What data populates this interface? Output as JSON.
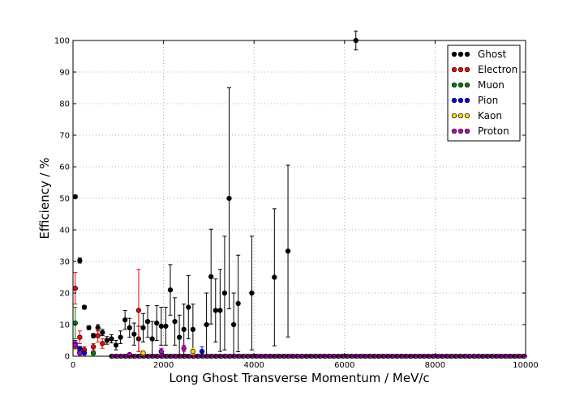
{
  "chart_data": {
    "type": "scatter",
    "xlabel": "Long Ghost Transverse Momentum / MeV/c",
    "ylabel": "Efficiency / %",
    "xlim": [
      0,
      10000
    ],
    "ylim": [
      0,
      100
    ],
    "xticks": [
      "0",
      "2000",
      "4000",
      "6000",
      "8000",
      "10000"
    ],
    "yticks": [
      "0",
      "10",
      "20",
      "30",
      "40",
      "50",
      "60",
      "70",
      "80",
      "90",
      "100"
    ],
    "grid": true,
    "legend_position": "top-right",
    "series": [
      {
        "name": "Ghost",
        "color": "#000000",
        "points": [
          {
            "x": 50,
            "y": 50.5,
            "err": 0.5
          },
          {
            "x": 150,
            "y": 30.3,
            "err": 0.8
          },
          {
            "x": 250,
            "y": 15.5,
            "err": 0.6
          },
          {
            "x": 350,
            "y": 9.0,
            "err": 0.6
          },
          {
            "x": 450,
            "y": 6.5,
            "err": 0.7
          },
          {
            "x": 550,
            "y": 9.0,
            "err": 1.0
          },
          {
            "x": 650,
            "y": 7.5,
            "err": 1.0
          },
          {
            "x": 750,
            "y": 5.0,
            "err": 1.2
          },
          {
            "x": 850,
            "y": 5.5,
            "err": 1.3
          },
          {
            "x": 950,
            "y": 3.5,
            "err": 1.5
          },
          {
            "x": 1050,
            "y": 6.0,
            "err": 2.0
          },
          {
            "x": 1150,
            "y": 11.5,
            "err": 3.0
          },
          {
            "x": 1250,
            "y": 9.0,
            "err": 3.0
          },
          {
            "x": 1350,
            "y": 7.0,
            "err": 3.5
          },
          {
            "x": 1450,
            "y": 5.5,
            "err": 4.0
          },
          {
            "x": 1550,
            "y": 9.0,
            "err": 4.5
          },
          {
            "x": 1650,
            "y": 11.0,
            "err": 5.0
          },
          {
            "x": 1750,
            "y": 5.5,
            "err": 5.5
          },
          {
            "x": 1850,
            "y": 10.5,
            "err": 5.5
          },
          {
            "x": 1950,
            "y": 9.5,
            "err": 6.0
          },
          {
            "x": 2050,
            "y": 9.5,
            "err": 6.0
          },
          {
            "x": 2150,
            "y": 21.0,
            "err": 8.0
          },
          {
            "x": 2250,
            "y": 11.0,
            "err": 7.5
          },
          {
            "x": 2350,
            "y": 6.0,
            "err": 7.0
          },
          {
            "x": 2450,
            "y": 8.5,
            "err": 8.0
          },
          {
            "x": 2550,
            "y": 15.5,
            "err": 10.0
          },
          {
            "x": 2650,
            "y": 8.5,
            "err": 8.0
          },
          {
            "x": 2950,
            "y": 10.0,
            "err": 10.0
          },
          {
            "x": 3050,
            "y": 25.2,
            "err": 15.0
          },
          {
            "x": 3150,
            "y": 14.5,
            "err": 10.0
          },
          {
            "x": 3250,
            "y": 14.5,
            "err": 13.0
          },
          {
            "x": 3350,
            "y": 20.0,
            "err": 18.0
          },
          {
            "x": 3450,
            "y": 50.0,
            "err": 35.0
          },
          {
            "x": 3550,
            "y": 10.0,
            "err": 10.0
          },
          {
            "x": 3650,
            "y": 16.7,
            "err": 15.3
          },
          {
            "x": 3950,
            "y": 20.0,
            "err": 18.0
          },
          {
            "x": 4450,
            "y": 25.0,
            "err": 21.7
          },
          {
            "x": 4750,
            "y": 33.3,
            "err": 27.2
          },
          {
            "x": 6250,
            "y": 100.0,
            "err": 3.0
          }
        ]
      },
      {
        "name": "Electron",
        "color": "#ff0000",
        "points": [
          {
            "x": 50,
            "y": 21.5,
            "err": 5.0
          },
          {
            "x": 150,
            "y": 6.0,
            "err": 2.0
          },
          {
            "x": 250,
            "y": 2.0,
            "err": 1.0
          },
          {
            "x": 450,
            "y": 3.0,
            "err": 1.0
          },
          {
            "x": 550,
            "y": 6.5,
            "err": 2.0
          },
          {
            "x": 650,
            "y": 4.0,
            "err": 1.5
          },
          {
            "x": 1450,
            "y": 14.5,
            "err": 13.0
          }
        ]
      },
      {
        "name": "Muon",
        "color": "#008000",
        "points": [
          {
            "x": 50,
            "y": 10.5,
            "err": 5.0
          },
          {
            "x": 150,
            "y": 1.5,
            "err": 1.0
          },
          {
            "x": 450,
            "y": 1.0,
            "err": 0.5
          }
        ]
      },
      {
        "name": "Pion",
        "color": "#0000ff",
        "points": [
          {
            "x": 50,
            "y": 4.0,
            "err": 1.0
          },
          {
            "x": 150,
            "y": 2.5,
            "err": 0.5
          },
          {
            "x": 250,
            "y": 1.0,
            "err": 0.3
          },
          {
            "x": 2850,
            "y": 1.5,
            "err": 1.5
          }
        ]
      },
      {
        "name": "Kaon",
        "color": "#ffd700",
        "points": [
          {
            "x": 50,
            "y": 3.0,
            "err": 1.0
          },
          {
            "x": 150,
            "y": 1.0,
            "err": 0.5
          },
          {
            "x": 1550,
            "y": 1.0,
            "err": 0.8
          },
          {
            "x": 2650,
            "y": 1.5,
            "err": 1.0
          }
        ]
      },
      {
        "name": "Proton",
        "color": "#bf00bf",
        "points": [
          {
            "x": 50,
            "y": 3.5,
            "err": 1.0
          },
          {
            "x": 150,
            "y": 1.0,
            "err": 0.5
          },
          {
            "x": 1250,
            "y": 0.5,
            "err": 0.5
          },
          {
            "x": 1950,
            "y": 1.5,
            "err": 1.0
          },
          {
            "x": 2450,
            "y": 2.5,
            "err": 1.0
          }
        ]
      }
    ],
    "zero_row": {
      "x_start": 850,
      "x_end": 9950,
      "step": 100,
      "y": 0,
      "colors": [
        "#000000",
        "#bf00bf"
      ]
    }
  }
}
